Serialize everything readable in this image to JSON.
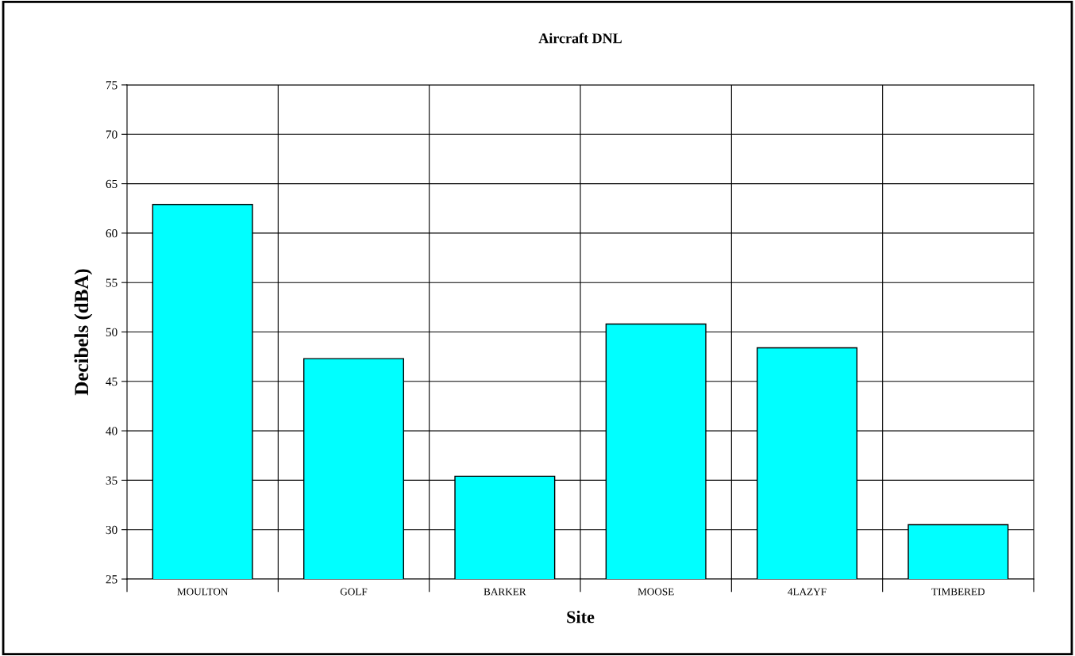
{
  "chart_data": {
    "type": "bar",
    "title": "Aircraft DNL",
    "xlabel": "Site",
    "ylabel": "Decibels (dBA)",
    "categories": [
      "MOULTON",
      "GOLF",
      "BARKER",
      "MOOSE",
      "4LAZYF",
      "TIMBERED"
    ],
    "values": [
      62.9,
      47.3,
      35.4,
      50.8,
      48.4,
      30.5
    ],
    "color": "#00ffff",
    "ylim": [
      25,
      75
    ],
    "yticks": [
      25,
      30,
      35,
      40,
      45,
      50,
      55,
      60,
      65,
      70,
      75
    ],
    "grid": true
  }
}
